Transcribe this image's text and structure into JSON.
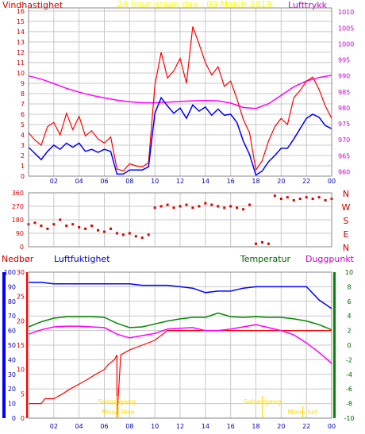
{
  "title": "24 hour graph day : 09 March 2019",
  "colors": {
    "wind": "#ff0000",
    "wind_avg": "#0000ff",
    "pressure": "#ff00ff",
    "direction": "#dd0000",
    "rain": "#ff0000",
    "humidity": "#0000ff",
    "temperature": "#008800",
    "dewpoint": "#ff00ff",
    "sun": "#ffdd00",
    "grid": "#c8c8c8",
    "frame": "#888888"
  },
  "chart_data": [
    {
      "type": "line",
      "name": "wind-pressure",
      "left_label": "Vindhastighet",
      "right_label": "Lufttrykk",
      "x_ticks": [
        "02",
        "04",
        "06",
        "08",
        "10",
        "12",
        "14",
        "16",
        "18",
        "20",
        "22",
        "00"
      ],
      "y_left_ticks": [
        "0",
        "1",
        "2",
        "3",
        "4",
        "5",
        "6",
        "7",
        "8",
        "9",
        "10",
        "11",
        "12",
        "13",
        "14",
        "15",
        "16"
      ],
      "y_right_ticks": [
        "960",
        "965",
        "970",
        "975",
        "980",
        "985",
        "990",
        "995",
        "1000",
        "1005",
        "1010"
      ],
      "x_range": [
        0,
        24
      ],
      "y_left_range": [
        0,
        16.3
      ],
      "y_right_range": [
        958.6,
        1011.3
      ],
      "series": [
        {
          "axis": "left",
          "x": [
            0,
            0.5,
            1,
            1.5,
            2,
            2.5,
            3,
            3.5,
            4,
            4.5,
            5,
            5.5,
            6,
            6.5,
            7,
            7.5,
            8,
            8.5,
            9,
            9.5,
            10,
            10.5,
            11,
            11.5,
            12,
            12.5,
            13,
            13.5,
            14,
            14.5,
            15,
            15.5,
            16,
            16.5,
            17,
            17.5,
            18,
            18.5,
            19,
            19.5,
            20,
            20.5,
            21,
            21.5,
            22,
            22.5,
            23,
            23.5,
            24
          ],
          "values": [
            4.2,
            3.5,
            3.0,
            4.8,
            5.2,
            4.0,
            6.1,
            4.5,
            5.8,
            3.9,
            4.4,
            3.6,
            3.2,
            3.8,
            0.7,
            0.5,
            1.2,
            1.0,
            0.9,
            1.3,
            8.8,
            12.0,
            9.5,
            10.2,
            11.4,
            9.0,
            14.5,
            12.8,
            11.0,
            9.8,
            10.6,
            8.7,
            9.2,
            7.5,
            5.5,
            4.2,
            0.6,
            1.5,
            3.4,
            4.8,
            5.6,
            5.0,
            7.6,
            8.3,
            9.2,
            9.6,
            8.4,
            6.8,
            5.6
          ]
        },
        {
          "axis": "left",
          "x": [
            0,
            0.5,
            1,
            1.5,
            2,
            2.5,
            3,
            3.5,
            4,
            4.5,
            5,
            5.5,
            6,
            6.5,
            7,
            7.5,
            8,
            8.5,
            9,
            9.5,
            10,
            10.5,
            11,
            11.5,
            12,
            12.5,
            13,
            13.5,
            14,
            14.5,
            15,
            15.5,
            16,
            16.5,
            17,
            17.5,
            18,
            18.5,
            19,
            19.5,
            20,
            20.5,
            21,
            21.5,
            22,
            22.5,
            23,
            23.5,
            24
          ],
          "values": [
            2.8,
            2.2,
            1.6,
            2.4,
            3.0,
            2.6,
            3.2,
            2.8,
            3.2,
            2.4,
            2.6,
            2.3,
            2.6,
            2.4,
            0.2,
            0.2,
            0.6,
            0.6,
            0.6,
            0.9,
            6.1,
            7.6,
            6.8,
            6.1,
            6.6,
            5.6,
            6.9,
            6.3,
            6.7,
            5.9,
            6.5,
            5.9,
            6.0,
            5.2,
            3.4,
            2.1,
            0.1,
            0.5,
            1.4,
            2.0,
            2.7,
            2.7,
            3.6,
            4.6,
            5.6,
            6.0,
            5.7,
            4.9,
            4.6
          ]
        },
        {
          "axis": "right",
          "x": [
            0,
            1,
            2,
            3,
            4,
            5,
            6,
            7,
            8,
            9,
            10,
            11,
            12,
            13,
            14,
            15,
            16,
            17,
            18,
            19,
            20,
            21,
            22,
            23,
            24
          ],
          "values": [
            990.0,
            989.0,
            987.6,
            986.1,
            984.9,
            983.9,
            983.1,
            982.4,
            981.9,
            981.6,
            981.6,
            981.8,
            982.0,
            982.2,
            982.3,
            982.2,
            981.5,
            980.1,
            979.8,
            981.3,
            983.9,
            986.6,
            988.4,
            989.5,
            990.2
          ]
        }
      ]
    },
    {
      "type": "scatter",
      "name": "wind-direction",
      "y_ticks": [
        "0",
        "90",
        "180",
        "270",
        "360"
      ],
      "right_labels": [
        "N",
        "W",
        "S",
        "E",
        "N"
      ],
      "x_range": [
        0,
        24
      ],
      "y_range": [
        0,
        360
      ],
      "x": [
        0,
        0.5,
        1,
        1.5,
        2,
        2.5,
        3,
        3.5,
        4,
        4.5,
        5,
        5.5,
        6,
        6.5,
        7,
        7.5,
        8,
        8.5,
        9,
        9.5,
        10,
        10.5,
        11,
        11.5,
        12,
        12.5,
        13,
        13.5,
        14,
        14.5,
        15,
        15.5,
        16,
        16.5,
        17,
        17.5,
        18,
        18.5,
        19,
        19.5,
        20,
        20.5,
        21,
        21.5,
        22,
        22.5,
        23,
        23.5,
        24
      ],
      "values": [
        150,
        160,
        140,
        120,
        150,
        180,
        140,
        150,
        130,
        120,
        140,
        110,
        100,
        120,
        90,
        80,
        90,
        70,
        60,
        80,
        260,
        270,
        280,
        260,
        270,
        280,
        260,
        270,
        290,
        280,
        270,
        260,
        270,
        260,
        250,
        280,
        20,
        30,
        20,
        340,
        320,
        330,
        310,
        320,
        330,
        320,
        330,
        310,
        320
      ]
    },
    {
      "type": "line",
      "name": "rain-humidity-temperature",
      "rain_label": "Nedbør",
      "humidity_label": "Luftfuktighet",
      "temperature_label": "Temperatur",
      "dewpoint_label": "Duggpunkt",
      "x_ticks": [
        "02",
        "04",
        "06",
        "08",
        "10",
        "12",
        "14",
        "16",
        "18",
        "20",
        "22",
        "00"
      ],
      "humidity_ticks": [
        "0",
        "10",
        "20",
        "30",
        "40",
        "50",
        "60",
        "70",
        "80",
        "90",
        "100"
      ],
      "rain_ticks": [
        "0",
        "5",
        "10",
        "15",
        "20",
        "25",
        "30"
      ],
      "temp_ticks": [
        "-10",
        "-8",
        "-6",
        "-4",
        "-2",
        "0",
        "2",
        "4",
        "6",
        "8",
        "10"
      ],
      "x_range": [
        0,
        24
      ],
      "humidity_range": [
        0,
        100
      ],
      "rain_range": [
        0,
        30
      ],
      "temp_range": [
        -10,
        10
      ],
      "series": [
        {
          "axis": "humidity",
          "x": [
            0,
            1,
            2,
            3,
            4,
            5,
            6,
            7,
            8,
            9,
            10,
            11,
            12,
            13,
            14,
            15,
            16,
            17,
            18,
            19,
            20,
            21,
            22,
            23,
            24
          ],
          "values": [
            93,
            93,
            92,
            92,
            92,
            92,
            92,
            92,
            92,
            91,
            91,
            91,
            90,
            89,
            86,
            87,
            87,
            89,
            90,
            90,
            90,
            90,
            90,
            81,
            75
          ]
        },
        {
          "axis": "temp",
          "x": [
            0,
            1,
            2,
            3,
            4,
            5,
            6,
            7,
            8,
            9,
            10,
            11,
            12,
            13,
            14,
            15,
            16,
            17,
            18,
            19,
            20,
            21,
            22,
            23,
            24
          ],
          "values": [
            2.5,
            3.2,
            3.7,
            3.9,
            3.9,
            3.9,
            3.8,
            3.0,
            2.4,
            2.5,
            2.9,
            3.3,
            3.6,
            3.8,
            3.8,
            4.4,
            3.9,
            3.8,
            3.9,
            3.8,
            3.8,
            3.6,
            3.3,
            2.8,
            2.1
          ]
        },
        {
          "axis": "temp",
          "x": [
            0,
            1,
            2,
            3,
            4,
            5,
            6,
            7,
            8,
            9,
            10,
            11,
            12,
            13,
            14,
            15,
            16,
            17,
            18,
            19,
            20,
            21,
            22,
            23,
            24
          ],
          "values": [
            1.5,
            2.1,
            2.5,
            2.6,
            2.6,
            2.5,
            2.4,
            1.5,
            1.0,
            1.3,
            1.6,
            2.2,
            2.3,
            2.4,
            2.0,
            2.0,
            2.2,
            2.5,
            2.8,
            2.4,
            2.0,
            1.4,
            0.3,
            -1.0,
            -2.5
          ]
        },
        {
          "axis": "rain",
          "x": [
            0,
            1,
            1.3,
            2,
            2.7,
            3.3,
            4,
            4.7,
            5.3,
            6,
            6.3,
            6.8,
            7,
            7,
            7.3,
            8,
            9,
            10,
            10.5,
            11,
            13,
            24
          ],
          "values": [
            3,
            3,
            4,
            4,
            5,
            6,
            7,
            8,
            9,
            10,
            11,
            12,
            13,
            0,
            13,
            14,
            15,
            16,
            17,
            18,
            18,
            18
          ]
        }
      ],
      "annotations": [
        {
          "text": "Soloppgang",
          "x": 7
        },
        {
          "text": "Moon Rise",
          "x": 7.1
        },
        {
          "text": "Solnedgang",
          "x": 18.5
        },
        {
          "text": "Moon Set",
          "x": 21.7
        }
      ]
    }
  ]
}
